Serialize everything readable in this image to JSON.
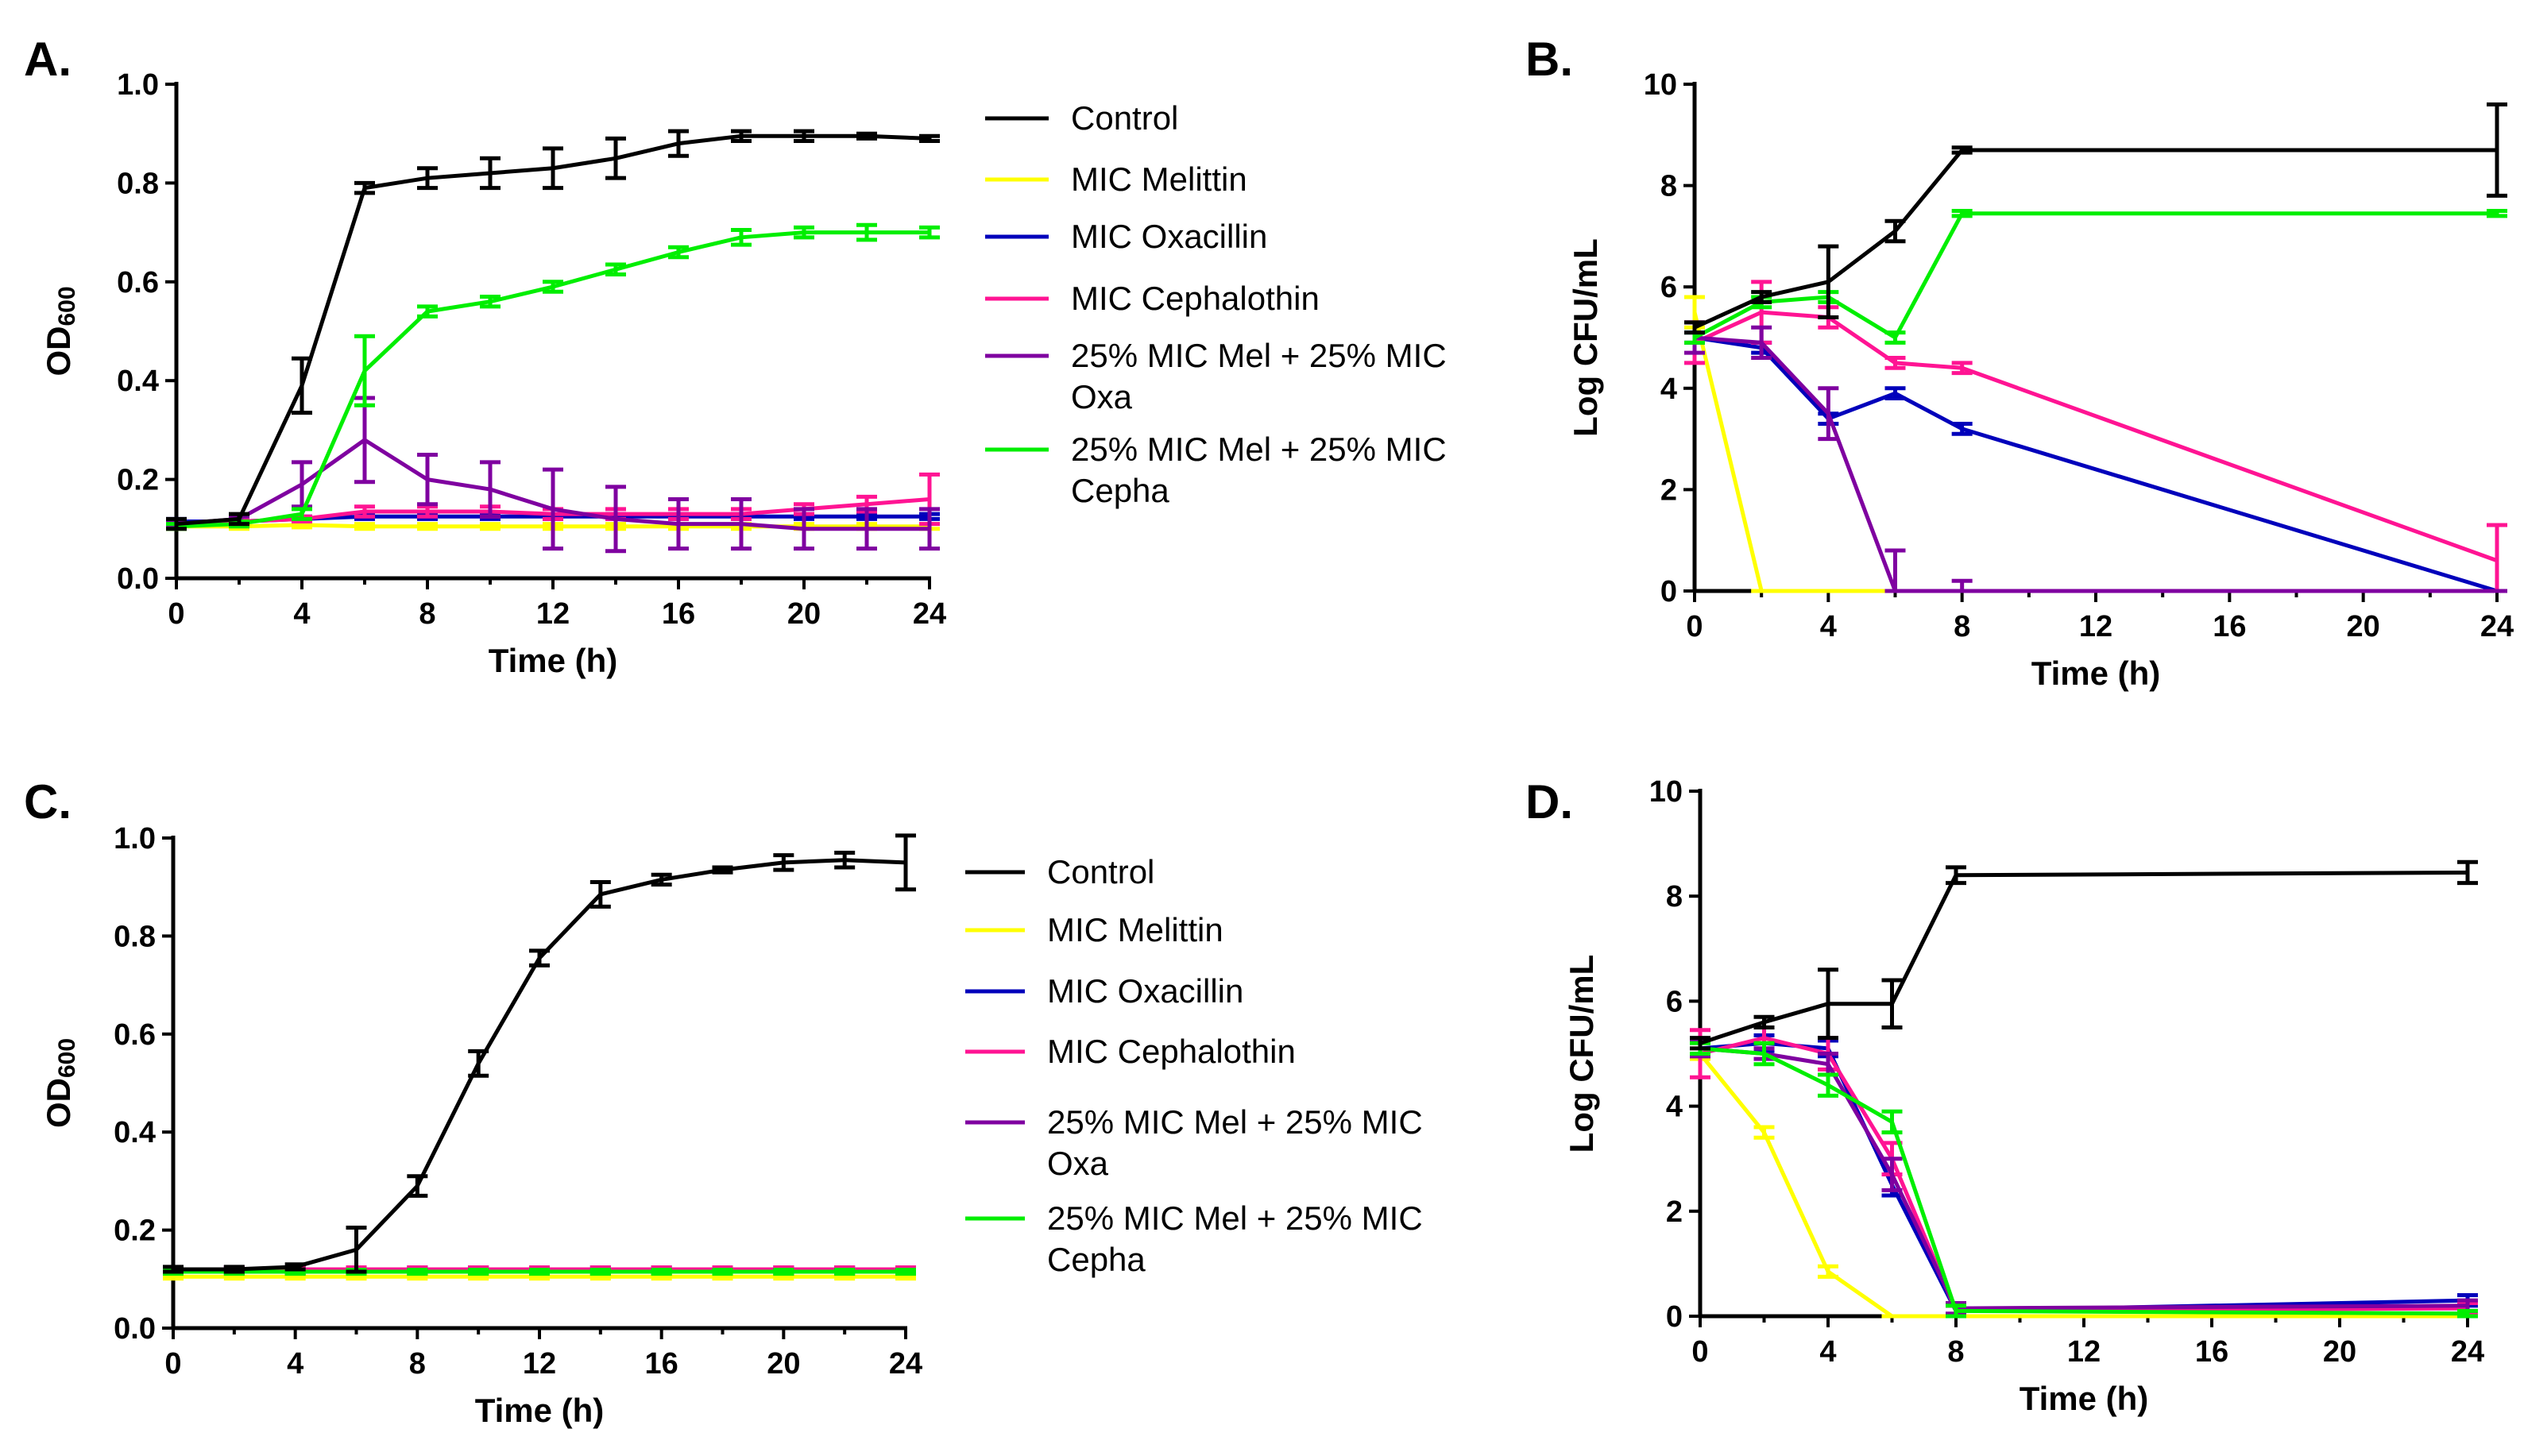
{
  "colors": {
    "control": "#000000",
    "melittin": "#ffff00",
    "oxacillin": "#0000bb",
    "cephalothin": "#ff1493",
    "mel_oxa": "#7f00a0",
    "mel_cepha": "#00ee00"
  },
  "chart_data": [
    {
      "id": "A",
      "panel_label": "A.",
      "type": "line",
      "xlabel": "Time (h)",
      "ylabel_main": "OD",
      "ylabel_sub": "600",
      "xlim": [
        0,
        24
      ],
      "ylim": [
        0,
        1.0
      ],
      "xticks": [
        0,
        4,
        8,
        12,
        16,
        20,
        24
      ],
      "yticks": [
        0.0,
        0.2,
        0.4,
        0.6,
        0.8,
        1.0
      ],
      "xtick_labels": [
        "0",
        "4",
        "8",
        "12",
        "16",
        "20",
        "24"
      ],
      "ytick_labels": [
        "0.0",
        "0.2",
        "0.4",
        "0.6",
        "0.8",
        "1.0"
      ],
      "series": [
        {
          "key": "control",
          "x": [
            0,
            2,
            4,
            6,
            8,
            10,
            12,
            14,
            16,
            18,
            20,
            22,
            24
          ],
          "values": [
            0.11,
            0.12,
            0.39,
            0.79,
            0.81,
            0.82,
            0.83,
            0.85,
            0.88,
            0.895,
            0.895,
            0.895,
            0.89
          ],
          "err": [
            0.01,
            0.01,
            0.055,
            0.01,
            0.02,
            0.03,
            0.04,
            0.04,
            0.025,
            0.01,
            0.01,
            0.005,
            0.005
          ]
        },
        {
          "key": "melittin",
          "x": [
            0,
            2,
            4,
            6,
            8,
            10,
            12,
            14,
            16,
            18,
            20,
            22,
            24
          ],
          "values": [
            0.105,
            0.105,
            0.108,
            0.105,
            0.105,
            0.105,
            0.105,
            0.105,
            0.105,
            0.105,
            0.105,
            0.105,
            0.105
          ],
          "err": [
            0.005,
            0.005,
            0.005,
            0.005,
            0.005,
            0.005,
            0.005,
            0.005,
            0.005,
            0.005,
            0.005,
            0.005,
            0.005
          ]
        },
        {
          "key": "oxacillin",
          "x": [
            0,
            2,
            4,
            6,
            8,
            10,
            12,
            14,
            16,
            18,
            20,
            22,
            24
          ],
          "values": [
            0.115,
            0.115,
            0.12,
            0.125,
            0.125,
            0.125,
            0.125,
            0.125,
            0.125,
            0.125,
            0.125,
            0.125,
            0.125
          ],
          "err": [
            0.005,
            0.005,
            0.005,
            0.005,
            0.005,
            0.005,
            0.005,
            0.005,
            0.005,
            0.005,
            0.005,
            0.005,
            0.005
          ]
        },
        {
          "key": "cephalothin",
          "x": [
            0,
            2,
            4,
            6,
            8,
            10,
            12,
            14,
            16,
            18,
            20,
            22,
            24
          ],
          "values": [
            0.11,
            0.115,
            0.12,
            0.135,
            0.135,
            0.135,
            0.13,
            0.13,
            0.13,
            0.13,
            0.14,
            0.15,
            0.16
          ],
          "err": [
            0.005,
            0.005,
            0.005,
            0.01,
            0.01,
            0.01,
            0.01,
            0.01,
            0.01,
            0.01,
            0.01,
            0.015,
            0.05
          ]
        },
        {
          "key": "mel_oxa",
          "x": [
            0,
            2,
            4,
            6,
            8,
            10,
            12,
            14,
            16,
            18,
            20,
            22,
            24
          ],
          "values": [
            0.11,
            0.12,
            0.19,
            0.28,
            0.2,
            0.18,
            0.14,
            0.12,
            0.11,
            0.11,
            0.1,
            0.1,
            0.1
          ],
          "err": [
            0.005,
            0.005,
            0.045,
            0.085,
            0.05,
            0.055,
            0.08,
            0.065,
            0.05,
            0.05,
            0.04,
            0.04,
            0.04
          ]
        },
        {
          "key": "mel_cepha",
          "x": [
            0,
            2,
            4,
            6,
            8,
            10,
            12,
            14,
            16,
            18,
            20,
            22,
            24
          ],
          "values": [
            0.105,
            0.11,
            0.13,
            0.42,
            0.54,
            0.56,
            0.59,
            0.625,
            0.66,
            0.69,
            0.7,
            0.7,
            0.7
          ],
          "err": [
            0.005,
            0.005,
            0.01,
            0.07,
            0.01,
            0.01,
            0.01,
            0.01,
            0.01,
            0.015,
            0.01,
            0.015,
            0.01
          ]
        }
      ],
      "legend": [
        {
          "key": "control",
          "label": "Control"
        },
        {
          "key": "melittin",
          "label": "MIC Melittin"
        },
        {
          "key": "oxacillin",
          "label": "MIC Oxacillin"
        },
        {
          "key": "cephalothin",
          "label": "MIC Cephalothin"
        },
        {
          "key": "mel_oxa",
          "label": "25% MIC Mel + 25% MIC",
          "label2": "Oxa"
        },
        {
          "key": "mel_cepha",
          "label": "25% MIC Mel + 25% MIC",
          "label2": "Cepha"
        }
      ]
    },
    {
      "id": "B",
      "panel_label": "B.",
      "type": "line",
      "xlabel": "Time (h)",
      "ylabel_main": "Log CFU/mL",
      "ylabel_sub": "",
      "xlim": [
        0,
        24
      ],
      "ylim": [
        0,
        10
      ],
      "xticks": [
        0,
        4,
        8,
        12,
        16,
        20,
        24
      ],
      "yticks": [
        0,
        2,
        4,
        6,
        8,
        10
      ],
      "xtick_labels": [
        "0",
        "4",
        "8",
        "12",
        "16",
        "20",
        "24"
      ],
      "ytick_labels": [
        "0",
        "2",
        "4",
        "6",
        "8",
        "10"
      ],
      "series": [
        {
          "key": "control",
          "x": [
            0,
            2,
            4,
            6,
            8,
            24
          ],
          "values": [
            5.2,
            5.8,
            6.1,
            7.1,
            8.7,
            8.7
          ],
          "err": [
            0.1,
            0.1,
            0.7,
            0.2,
            0.05,
            0.9
          ]
        },
        {
          "key": "melittin",
          "x": [
            0,
            2,
            4,
            6,
            8,
            24
          ],
          "values": [
            5.5,
            0,
            0,
            0,
            0,
            0
          ],
          "err": [
            0.3,
            0,
            0,
            0,
            0,
            0
          ]
        },
        {
          "key": "oxacillin",
          "x": [
            0,
            2,
            4,
            6,
            8,
            24
          ],
          "values": [
            5.0,
            4.8,
            3.4,
            3.9,
            3.2,
            0
          ],
          "err": [
            0.1,
            0.1,
            0.1,
            0.1,
            0.1,
            0
          ]
        },
        {
          "key": "cephalothin",
          "x": [
            0,
            2,
            4,
            6,
            8,
            24
          ],
          "values": [
            4.9,
            5.5,
            5.4,
            4.5,
            4.4,
            0.6
          ],
          "err": [
            0.4,
            0.6,
            0.2,
            0.1,
            0.1,
            0.7
          ]
        },
        {
          "key": "mel_oxa",
          "x": [
            0,
            2,
            4,
            6,
            8,
            24
          ],
          "values": [
            5.0,
            4.9,
            3.5,
            0,
            0,
            0
          ],
          "err": [
            0.3,
            0.3,
            0.5,
            0.8,
            0.2,
            0
          ]
        },
        {
          "key": "mel_cepha",
          "x": [
            0,
            2,
            4,
            6,
            8,
            24
          ],
          "values": [
            5.0,
            5.7,
            5.8,
            5.0,
            7.45,
            7.45
          ],
          "err": [
            0.1,
            0.1,
            0.1,
            0.1,
            0.05,
            0.05
          ]
        }
      ]
    },
    {
      "id": "C",
      "panel_label": "C.",
      "type": "line",
      "xlabel": "Time (h)",
      "ylabel_main": "OD",
      "ylabel_sub": "600",
      "xlim": [
        0,
        24
      ],
      "ylim": [
        0,
        1.0
      ],
      "xticks": [
        0,
        4,
        8,
        12,
        16,
        20,
        24
      ],
      "yticks": [
        0.0,
        0.2,
        0.4,
        0.6,
        0.8,
        1.0
      ],
      "xtick_labels": [
        "0",
        "4",
        "8",
        "12",
        "16",
        "20",
        "24"
      ],
      "ytick_labels": [
        "0.0",
        "0.2",
        "0.4",
        "0.6",
        "0.8",
        "1.0"
      ],
      "series": [
        {
          "key": "control",
          "x": [
            0,
            2,
            4,
            6,
            8,
            10,
            12,
            14,
            16,
            18,
            20,
            22,
            24
          ],
          "values": [
            0.12,
            0.12,
            0.125,
            0.16,
            0.29,
            0.54,
            0.755,
            0.885,
            0.915,
            0.935,
            0.95,
            0.955,
            0.95
          ],
          "err": [
            0.005,
            0.005,
            0.005,
            0.045,
            0.02,
            0.025,
            0.015,
            0.025,
            0.01,
            0.005,
            0.015,
            0.015,
            0.055
          ]
        },
        {
          "key": "melittin",
          "x": [
            0,
            2,
            4,
            6,
            8,
            10,
            12,
            14,
            16,
            18,
            20,
            22,
            24
          ],
          "values": [
            0.105,
            0.105,
            0.105,
            0.105,
            0.105,
            0.105,
            0.105,
            0.105,
            0.105,
            0.105,
            0.105,
            0.105,
            0.105
          ],
          "err": [
            0.004,
            0.004,
            0.004,
            0.004,
            0.004,
            0.004,
            0.004,
            0.004,
            0.004,
            0.004,
            0.004,
            0.004,
            0.004
          ]
        },
        {
          "key": "oxacillin",
          "x": [
            0,
            2,
            4,
            6,
            8,
            10,
            12,
            14,
            16,
            18,
            20,
            22,
            24
          ],
          "values": [
            0.12,
            0.12,
            0.12,
            0.12,
            0.12,
            0.12,
            0.12,
            0.12,
            0.12,
            0.12,
            0.12,
            0.12,
            0.12
          ],
          "err": [
            0.004,
            0.004,
            0.004,
            0.004,
            0.004,
            0.004,
            0.004,
            0.004,
            0.004,
            0.004,
            0.004,
            0.004,
            0.004
          ]
        },
        {
          "key": "cephalothin",
          "x": [
            0,
            2,
            4,
            6,
            8,
            10,
            12,
            14,
            16,
            18,
            20,
            22,
            24
          ],
          "values": [
            0.12,
            0.12,
            0.12,
            0.12,
            0.12,
            0.12,
            0.12,
            0.12,
            0.12,
            0.12,
            0.12,
            0.12,
            0.12
          ],
          "err": [
            0.004,
            0.004,
            0.004,
            0.004,
            0.004,
            0.004,
            0.004,
            0.004,
            0.004,
            0.004,
            0.004,
            0.004,
            0.004
          ]
        },
        {
          "key": "mel_oxa",
          "x": [
            0,
            2,
            4,
            6,
            8,
            10,
            12,
            14,
            16,
            18,
            20,
            22,
            24
          ],
          "values": [
            0.115,
            0.115,
            0.115,
            0.115,
            0.115,
            0.115,
            0.115,
            0.115,
            0.115,
            0.115,
            0.115,
            0.115,
            0.115
          ],
          "err": [
            0.004,
            0.004,
            0.004,
            0.004,
            0.004,
            0.004,
            0.004,
            0.004,
            0.004,
            0.004,
            0.004,
            0.004,
            0.004
          ]
        },
        {
          "key": "mel_cepha",
          "x": [
            0,
            2,
            4,
            6,
            8,
            10,
            12,
            14,
            16,
            18,
            20,
            22,
            24
          ],
          "values": [
            0.115,
            0.115,
            0.115,
            0.115,
            0.115,
            0.115,
            0.115,
            0.115,
            0.115,
            0.115,
            0.115,
            0.115,
            0.115
          ],
          "err": [
            0.004,
            0.004,
            0.004,
            0.004,
            0.004,
            0.004,
            0.004,
            0.004,
            0.004,
            0.004,
            0.004,
            0.004,
            0.004
          ]
        }
      ],
      "legend": [
        {
          "key": "control",
          "label": "Control"
        },
        {
          "key": "melittin",
          "label": "MIC Melittin"
        },
        {
          "key": "oxacillin",
          "label": "MIC Oxacillin"
        },
        {
          "key": "cephalothin",
          "label": "MIC Cephalothin"
        },
        {
          "key": "mel_oxa",
          "label": "25% MIC Mel + 25% MIC",
          "label2": "Oxa"
        },
        {
          "key": "mel_cepha",
          "label": "25% MIC Mel + 25% MIC",
          "label2": "Cepha"
        }
      ]
    },
    {
      "id": "D",
      "panel_label": "D.",
      "type": "line",
      "xlabel": "Time (h)",
      "ylabel_main": "Log CFU/mL",
      "ylabel_sub": "",
      "xlim": [
        0,
        24
      ],
      "ylim": [
        0,
        10
      ],
      "xticks": [
        0,
        4,
        8,
        12,
        16,
        20,
        24
      ],
      "yticks": [
        0,
        2,
        4,
        6,
        8,
        10
      ],
      "xtick_labels": [
        "0",
        "4",
        "8",
        "12",
        "16",
        "20",
        "24"
      ],
      "ytick_labels": [
        "0",
        "2",
        "4",
        "6",
        "8",
        "10"
      ],
      "series": [
        {
          "key": "control",
          "x": [
            0,
            2,
            4,
            6,
            8,
            24
          ],
          "values": [
            5.2,
            5.6,
            5.95,
            5.95,
            8.4,
            8.45
          ],
          "err": [
            0.1,
            0.1,
            0.65,
            0.45,
            0.15,
            0.2
          ]
        },
        {
          "key": "melittin",
          "x": [
            0,
            2,
            4,
            6,
            8,
            24
          ],
          "values": [
            5.0,
            3.5,
            0.85,
            0,
            0,
            0
          ],
          "err": [
            0.1,
            0.1,
            0.1,
            0,
            0,
            0
          ]
        },
        {
          "key": "oxacillin",
          "x": [
            0,
            2,
            4,
            6,
            8,
            24
          ],
          "values": [
            5.1,
            5.2,
            5.1,
            2.5,
            0.1,
            0.3
          ],
          "err": [
            0.15,
            0.15,
            0.15,
            0.2,
            0.1,
            0.1
          ]
        },
        {
          "key": "cephalothin",
          "x": [
            0,
            2,
            4,
            6,
            8,
            24
          ],
          "values": [
            5.0,
            5.3,
            5.0,
            3.0,
            0.1,
            0.15
          ],
          "err": [
            0.45,
            0.2,
            0.3,
            0.3,
            0.1,
            0.1
          ]
        },
        {
          "key": "mel_oxa",
          "x": [
            0,
            2,
            4,
            6,
            8,
            24
          ],
          "values": [
            5.1,
            5.0,
            4.8,
            2.7,
            0.15,
            0.2
          ],
          "err": [
            0.15,
            0.1,
            0.2,
            0.3,
            0.1,
            0.1
          ]
        },
        {
          "key": "mel_cepha",
          "x": [
            0,
            2,
            4,
            6,
            8,
            24
          ],
          "values": [
            5.1,
            5.0,
            4.4,
            3.7,
            0.1,
            0.05
          ],
          "err": [
            0.1,
            0.2,
            0.2,
            0.2,
            0.1,
            0.05
          ]
        }
      ]
    }
  ]
}
